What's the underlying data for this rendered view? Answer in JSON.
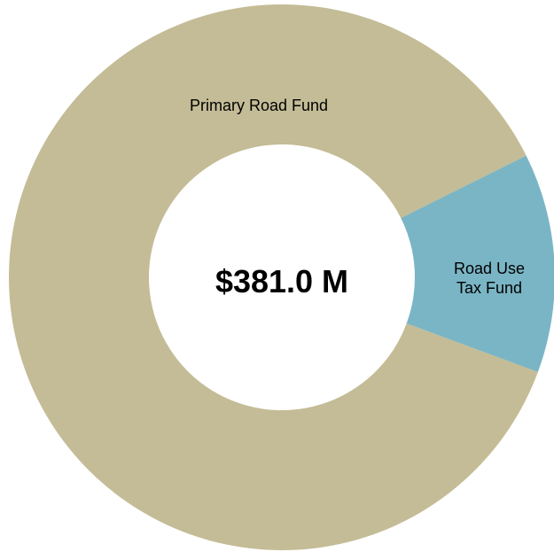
{
  "chart_data": {
    "type": "donut",
    "center_label": "$381.0 M",
    "categories": [
      "Primary Road Fund",
      "Road Use Tax Fund"
    ],
    "values": [
      87,
      13
    ],
    "colors": [
      "#c4bc96",
      "#7ab5c5"
    ]
  }
}
